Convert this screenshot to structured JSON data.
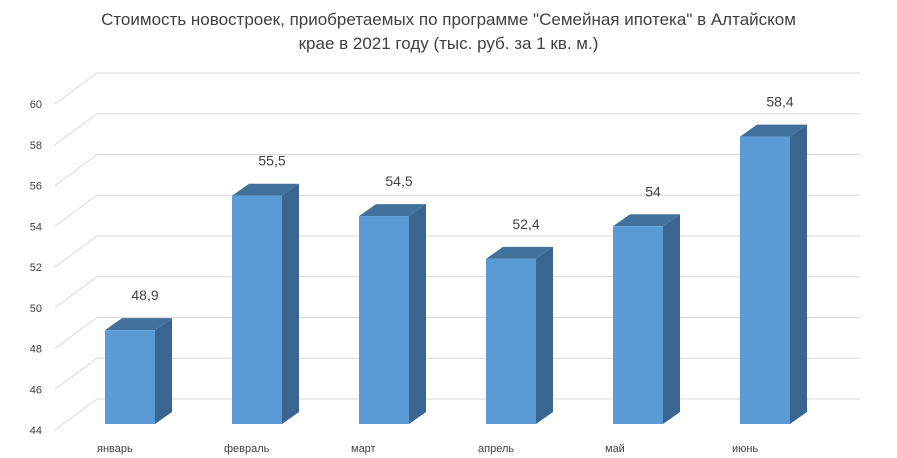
{
  "chart_data": {
    "type": "bar",
    "title_line1": "Стоимость новостроек, приобретаемых по программе \"Семейная ипотека\" в Алтайском",
    "title_line2": "крае в 2021 году (тыс. руб. за 1 кв. м.)",
    "categories": [
      "январь",
      "февраль",
      "март",
      "апрель",
      "май",
      "июнь"
    ],
    "values": [
      48.9,
      55.5,
      54.5,
      52.4,
      54,
      58.4
    ],
    "value_labels": [
      "48,9",
      "55,5",
      "54,5",
      "52,4",
      "54",
      "58,4"
    ],
    "y_ticks": [
      "44",
      "46",
      "48",
      "50",
      "52",
      "54",
      "56",
      "58",
      "60"
    ],
    "ylim": [
      44,
      60
    ],
    "grid": true,
    "three_d": true,
    "colors": {
      "bar_front": "#5B9BD5",
      "bar_side": "#3A6590",
      "bar_top": "#41719C",
      "grid": "#D9D9D9"
    }
  }
}
